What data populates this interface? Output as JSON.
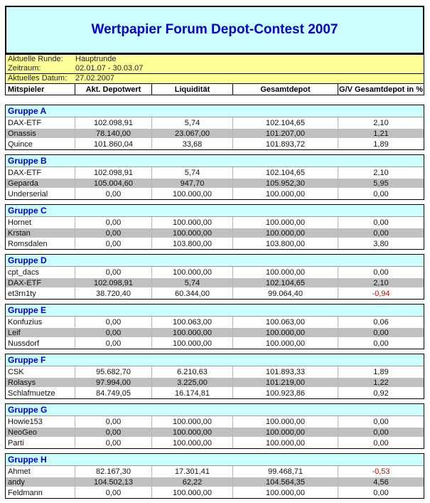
{
  "title": "Wertpapier Forum Depot-Contest 2007",
  "info": {
    "round_label": "Aktuelle Runde:",
    "round_value": "Hauptrunde",
    "period_label": "Zeitraum:",
    "period_value": "02.01.07 - 30.03.07",
    "date_label": "Aktuelles Datum:",
    "date_value": "27.02.2007"
  },
  "columns": [
    "Mitspieler",
    "Akt. Depotwert",
    "Liquidität",
    "Gesamtdepot",
    "G/V Gesamtdepot in %"
  ],
  "colors": {
    "title_text": "#0000cc",
    "title_bg": "#ccffff",
    "info_bg": "#ffff99",
    "group_header_bg": "#ccffff",
    "row_alt_bg": "#c0c0c0",
    "negative_text": "#cc0000"
  },
  "groups": [
    {
      "name": "Gruppe A",
      "rows": [
        {
          "player": "DAX-ETF",
          "depot": "102.098,91",
          "liquid": "5,74",
          "total": "102.104,65",
          "gv": "2,10"
        },
        {
          "player": "Onassis",
          "depot": "78.140,00",
          "liquid": "23.067,00",
          "total": "101.207,00",
          "gv": "1,21"
        },
        {
          "player": "Quince",
          "depot": "101.860,04",
          "liquid": "33,68",
          "total": "101.893,72",
          "gv": "1,89"
        }
      ]
    },
    {
      "name": "Gruppe B",
      "rows": [
        {
          "player": "DAX-ETF",
          "depot": "102.098,91",
          "liquid": "5,74",
          "total": "102.104,65",
          "gv": "2,10"
        },
        {
          "player": "Geparda",
          "depot": "105.004,60",
          "liquid": "947,70",
          "total": "105.952,30",
          "gv": "5,95"
        },
        {
          "player": "Underserial",
          "depot": "0,00",
          "liquid": "100.000,00",
          "total": "100.000,00",
          "gv": "0,00"
        }
      ]
    },
    {
      "name": "Gruppe C",
      "rows": [
        {
          "player": "Hornet",
          "depot": "0,00",
          "liquid": "100.000,00",
          "total": "100.000,00",
          "gv": "0,00"
        },
        {
          "player": "Krstan",
          "depot": "0,00",
          "liquid": "100.000,00",
          "total": "100.000,00",
          "gv": "0,00"
        },
        {
          "player": "Romsdalen",
          "depot": "0,00",
          "liquid": "103.800,00",
          "total": "103.800,00",
          "gv": "3,80"
        }
      ]
    },
    {
      "name": "Gruppe D",
      "rows": [
        {
          "player": "cpt_dacs",
          "depot": "0,00",
          "liquid": "100.000,00",
          "total": "100.000,00",
          "gv": "0,00"
        },
        {
          "player": "DAX-ETF",
          "depot": "102.098,91",
          "liquid": "5,74",
          "total": "102.104,65",
          "gv": "2,10"
        },
        {
          "player": "et3rn1ty",
          "depot": "38.720,40",
          "liquid": "60.344,00",
          "total": "99.064,40",
          "gv": "-0,94"
        }
      ]
    },
    {
      "name": "Gruppe E",
      "rows": [
        {
          "player": "Konfuzius",
          "depot": "0,00",
          "liquid": "100.063,00",
          "total": "100.063,00",
          "gv": "0,06"
        },
        {
          "player": "Leif",
          "depot": "0,00",
          "liquid": "100.000,00",
          "total": "100.000,00",
          "gv": "0,00"
        },
        {
          "player": "Nussdorf",
          "depot": "0,00",
          "liquid": "100.000,00",
          "total": "100.000,00",
          "gv": "0,00"
        }
      ]
    },
    {
      "name": "Gruppe F",
      "rows": [
        {
          "player": "CSK",
          "depot": "95.682,70",
          "liquid": "6.210,63",
          "total": "101.893,33",
          "gv": "1,89"
        },
        {
          "player": "Rolasys",
          "depot": "97.994,00",
          "liquid": "3.225,00",
          "total": "101.219,00",
          "gv": "1,22"
        },
        {
          "player": "Schlafmuetze",
          "depot": "84.749,05",
          "liquid": "16.174,81",
          "total": "100.923,86",
          "gv": "0,92"
        }
      ]
    },
    {
      "name": "Gruppe G",
      "rows": [
        {
          "player": "Howie153",
          "depot": "0,00",
          "liquid": "100.000,00",
          "total": "100.000,00",
          "gv": "0,00"
        },
        {
          "player": "NeoGeo",
          "depot": "0,00",
          "liquid": "100.000,00",
          "total": "100.000,00",
          "gv": "0,00"
        },
        {
          "player": "Parti",
          "depot": "0,00",
          "liquid": "100.000,00",
          "total": "100.000,00",
          "gv": "0,00"
        }
      ]
    },
    {
      "name": "Gruppe H",
      "rows": [
        {
          "player": "Ahmet",
          "depot": "82.167,30",
          "liquid": "17.301,41",
          "total": "99.468,71",
          "gv": "-0,53"
        },
        {
          "player": "andy",
          "depot": "104.502,13",
          "liquid": "62,22",
          "total": "104.564,35",
          "gv": "4,56"
        },
        {
          "player": "Feldmann",
          "depot": "0,00",
          "liquid": "100.000,00",
          "total": "100.000,00",
          "gv": "0,00"
        }
      ]
    }
  ]
}
